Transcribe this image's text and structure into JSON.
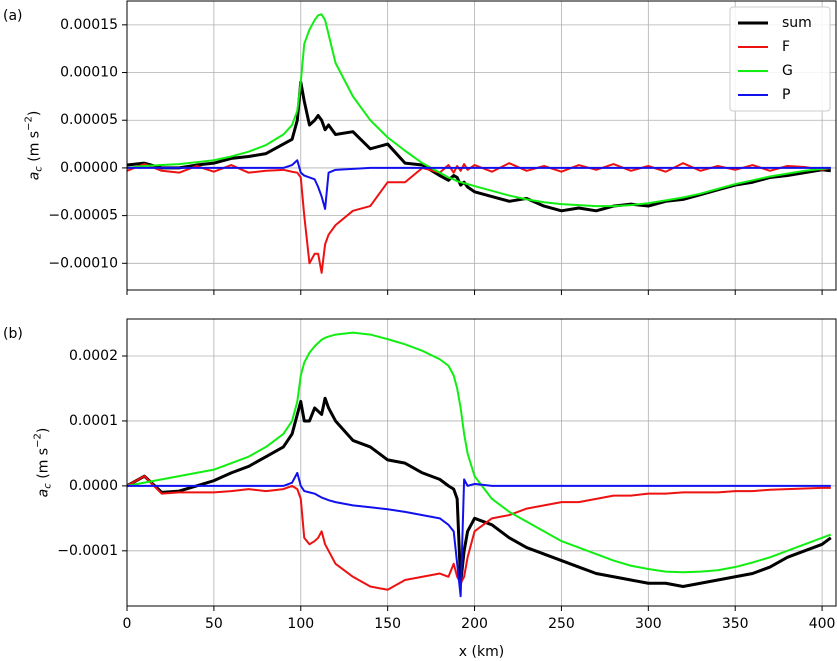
{
  "chart_data": [
    {
      "type": "line",
      "panel": "(a)",
      "ylabel": {
        "symbol": "a",
        "subscript": "c",
        "unit": " (m s",
        "exponent": "−2",
        "close": ")"
      },
      "x": [
        0,
        10,
        20,
        30,
        40,
        50,
        60,
        70,
        80,
        90,
        95,
        98,
        100,
        102,
        105,
        108,
        110,
        112,
        114,
        116,
        120,
        130,
        140,
        150,
        160,
        170,
        180,
        185,
        188,
        190,
        192,
        194,
        196,
        200,
        210,
        220,
        230,
        240,
        250,
        260,
        270,
        280,
        290,
        300,
        310,
        320,
        330,
        340,
        350,
        360,
        370,
        380,
        390,
        400,
        405
      ],
      "xlim": [
        0,
        408
      ],
      "xticks": [
        0,
        50,
        100,
        150,
        200,
        250,
        300,
        350,
        400
      ],
      "xticklabels": false,
      "ylim": [
        -0.000128,
        0.000175
      ],
      "yticks": [
        0.00015,
        {
          "value": 0.0001,
          "label": "0.00010"
        },
        {
          "value": 5e-05,
          "label": "0.00005"
        },
        {
          "value": 0,
          "label": "0.00000"
        },
        {
          "value": -5e-05,
          "label": "−0.00005"
        },
        {
          "value": -0.0001,
          "label": "−0.00010"
        }
      ],
      "grid": true,
      "legend": "upper right",
      "series": [
        {
          "name": "sum",
          "color": "#000000",
          "width": 3,
          "values": [
            3e-06,
            5e-06,
            0,
            0,
            3e-06,
            5e-06,
            1e-05,
            1.2e-05,
            1.5e-05,
            2.5e-05,
            3e-05,
            5e-05,
            9e-05,
            7e-05,
            4.5e-05,
            5e-05,
            5.5e-05,
            5e-05,
            4e-05,
            4.5e-05,
            3.5e-05,
            3.8e-05,
            2e-05,
            2.5e-05,
            5e-06,
            3e-06,
            -8e-06,
            -1.3e-05,
            -8e-06,
            -1e-05,
            -1.8e-05,
            -1.5e-05,
            -2e-05,
            -2.5e-05,
            -3e-05,
            -3.5e-05,
            -3.2e-05,
            -4e-05,
            -4.5e-05,
            -4.2e-05,
            -4.5e-05,
            -4e-05,
            -3.8e-05,
            -4e-05,
            -3.5e-05,
            -3.3e-05,
            -2.8e-05,
            -2.3e-05,
            -1.8e-05,
            -1.5e-05,
            -1e-05,
            -8e-06,
            -5e-06,
            -2e-06,
            -3e-06
          ]
        },
        {
          "name": "F",
          "color": "#ee1111",
          "width": 2,
          "values": [
            -3e-06,
            4e-06,
            -3e-06,
            -5e-06,
            2e-06,
            -4e-06,
            3e-06,
            -5e-06,
            -3e-06,
            -2e-06,
            -4e-06,
            -5e-06,
            -1e-05,
            -5e-05,
            -0.0001,
            -9e-05,
            -9e-05,
            -0.00011,
            -8e-05,
            -7e-05,
            -6e-05,
            -4.5e-05,
            -4e-05,
            -1.5e-05,
            -1.5e-05,
            0,
            -5e-06,
            3e-06,
            -5e-06,
            2e-06,
            -3e-06,
            4e-06,
            -2e-06,
            3e-06,
            -4e-06,
            5e-06,
            -3e-06,
            2e-06,
            -4e-06,
            3e-06,
            -2e-06,
            4e-06,
            -3e-06,
            2e-06,
            -4e-06,
            5e-06,
            -3e-06,
            2e-06,
            -2e-06,
            3e-06,
            -3e-06,
            2e-06,
            1e-06,
            -2e-06,
            0
          ]
        },
        {
          "name": "G",
          "color": "#11ee11",
          "width": 2,
          "values": [
            0,
            2e-06,
            3e-06,
            4e-06,
            6e-06,
            8e-06,
            1.2e-05,
            1.7e-05,
            2.4e-05,
            3.5e-05,
            4.5e-05,
            6e-05,
            9e-05,
            0.00013,
            0.000145,
            0.000155,
            0.00016,
            0.000161,
            0.000155,
            0.00014,
            0.00011,
            7.5e-05,
            5e-05,
            3.2e-05,
            1.8e-05,
            5e-06,
            -5e-06,
            -1e-05,
            -1.2e-05,
            -1.4e-05,
            -1.5e-05,
            -1.6e-05,
            -1.7e-05,
            -1.9e-05,
            -2.4e-05,
            -2.9e-05,
            -3.3e-05,
            -3.6e-05,
            -3.8e-05,
            -3.9e-05,
            -4e-05,
            -4e-05,
            -3.9e-05,
            -3.7e-05,
            -3.4e-05,
            -3.1e-05,
            -2.7e-05,
            -2.2e-05,
            -1.7e-05,
            -1.3e-05,
            -9e-06,
            -6e-06,
            -3e-06,
            -1e-06,
            0
          ]
        },
        {
          "name": "P",
          "color": "#1111ee",
          "width": 2,
          "values": [
            0,
            0,
            0,
            0,
            0,
            0,
            0,
            0,
            0,
            0,
            3e-06,
            8e-06,
            -5e-06,
            -8e-06,
            -1e-05,
            -1.2e-05,
            -2e-05,
            -3e-05,
            -4.3e-05,
            -5e-06,
            -2e-06,
            -1e-06,
            0,
            0,
            0,
            0,
            0,
            0,
            0,
            0,
            0,
            0,
            0,
            0,
            0,
            0,
            0,
            0,
            0,
            0,
            0,
            0,
            0,
            0,
            0,
            0,
            0,
            0,
            0,
            0,
            0,
            0,
            0,
            0,
            0
          ]
        }
      ]
    },
    {
      "type": "line",
      "panel": "(b)",
      "xlabel": "x (km)",
      "ylabel": {
        "symbol": "a",
        "subscript": "c",
        "unit": " (m s",
        "exponent": "−2",
        "close": ")"
      },
      "x": [
        0,
        10,
        20,
        30,
        40,
        50,
        60,
        70,
        80,
        90,
        95,
        98,
        100,
        102,
        105,
        108,
        110,
        112,
        114,
        116,
        120,
        130,
        140,
        150,
        160,
        170,
        180,
        185,
        188,
        190,
        192,
        194,
        196,
        200,
        210,
        220,
        230,
        240,
        250,
        260,
        270,
        280,
        290,
        300,
        310,
        320,
        330,
        340,
        350,
        360,
        370,
        380,
        390,
        400,
        405
      ],
      "xlim": [
        0,
        408
      ],
      "xticks": [
        0,
        50,
        100,
        150,
        200,
        250,
        300,
        350,
        400
      ],
      "xticklabels": true,
      "ylim": [
        -0.000185,
        0.000257
      ],
      "yticks": [
        0.0002,
        0.0001,
        {
          "value": 0,
          "label": "0.0000"
        },
        {
          "value": -0.0001,
          "label": "−0.0001"
        }
      ],
      "grid": true,
      "series": [
        {
          "color": "#000000",
          "width": 3,
          "values": [
            0,
            1.5e-05,
            -1e-05,
            -8e-06,
            0,
            8e-06,
            2e-05,
            3e-05,
            4.5e-05,
            6e-05,
            8e-05,
            0.00011,
            0.00013,
            0.0001,
            0.0001,
            0.00012,
            0.000115,
            0.00011,
            0.000135,
            0.00012,
            0.0001,
            7e-05,
            6e-05,
            4e-05,
            3.5e-05,
            2e-05,
            1e-05,
            0,
            -5e-06,
            -2e-05,
            -0.00015,
            -0.0001,
            -7e-05,
            -5e-05,
            -6e-05,
            -8e-05,
            -9.5e-05,
            -0.000105,
            -0.000115,
            -0.000125,
            -0.000135,
            -0.00014,
            -0.000145,
            -0.00015,
            -0.00015,
            -0.000155,
            -0.00015,
            -0.000145,
            -0.00014,
            -0.000135,
            -0.000125,
            -0.00011,
            -0.0001,
            -9e-05,
            -8e-05
          ]
        },
        {
          "color": "#ee1111",
          "width": 2,
          "values": [
            0,
            1.5e-05,
            -1.2e-05,
            -1e-05,
            -1e-05,
            -1e-05,
            -8e-06,
            -5e-06,
            -8e-06,
            -5e-06,
            0,
            -5e-06,
            -2e-05,
            -8e-05,
            -9e-05,
            -8.5e-05,
            -8e-05,
            -7e-05,
            -9e-05,
            -0.0001,
            -0.00012,
            -0.00014,
            -0.000155,
            -0.00016,
            -0.000145,
            -0.00014,
            -0.000135,
            -0.00014,
            -0.00012,
            -0.00014,
            -0.00015,
            -0.00014,
            -0.00011,
            -7e-05,
            -5e-05,
            -4.5e-05,
            -3.5e-05,
            -3e-05,
            -2.5e-05,
            -2.5e-05,
            -2e-05,
            -1.5e-05,
            -1.5e-05,
            -1.2e-05,
            -1.2e-05,
            -1e-05,
            -1e-05,
            -1e-05,
            -8e-06,
            -8e-06,
            -6e-06,
            -5e-06,
            -4e-06,
            -3e-06,
            -3e-06
          ]
        },
        {
          "color": "#11ee11",
          "width": 2,
          "values": [
            0,
            5e-06,
            1e-05,
            1.5e-05,
            2e-05,
            2.5e-05,
            3.5e-05,
            4.5e-05,
            6e-05,
            8e-05,
            0.0001,
            0.00013,
            0.00017,
            0.00019,
            0.000205,
            0.000215,
            0.00022,
            0.000225,
            0.000228,
            0.00023,
            0.000233,
            0.000236,
            0.000233,
            0.000226,
            0.000218,
            0.000208,
            0.000195,
            0.000185,
            0.00017,
            0.00015,
            0.00012,
            8e-05,
            5e-05,
            1.5e-05,
            -2e-05,
            -4e-05,
            -5.5e-05,
            -7e-05,
            -8.5e-05,
            -9.5e-05,
            -0.000105,
            -0.000115,
            -0.000123,
            -0.000128,
            -0.000132,
            -0.000133,
            -0.000132,
            -0.00013,
            -0.000125,
            -0.000118,
            -0.00011,
            -0.0001,
            -9e-05,
            -8e-05,
            -7.5e-05
          ]
        },
        {
          "color": "#1111ee",
          "width": 2,
          "values": [
            0,
            0,
            0,
            0,
            0,
            0,
            0,
            0,
            0,
            0,
            5e-06,
            2e-05,
            0,
            -8e-06,
            -1e-05,
            -1.2e-05,
            -1.5e-05,
            -1.8e-05,
            -2e-05,
            -2.2e-05,
            -2.5e-05,
            -3e-05,
            -3.3e-05,
            -3.6e-05,
            -4e-05,
            -4.5e-05,
            -5e-05,
            -6e-05,
            -7e-05,
            -0.00012,
            -0.00017,
            1e-05,
            0,
            3e-06,
            0,
            0,
            0,
            0,
            0,
            0,
            0,
            0,
            0,
            0,
            0,
            0,
            0,
            0,
            0,
            0,
            0,
            0,
            0,
            0,
            0
          ]
        }
      ]
    }
  ]
}
